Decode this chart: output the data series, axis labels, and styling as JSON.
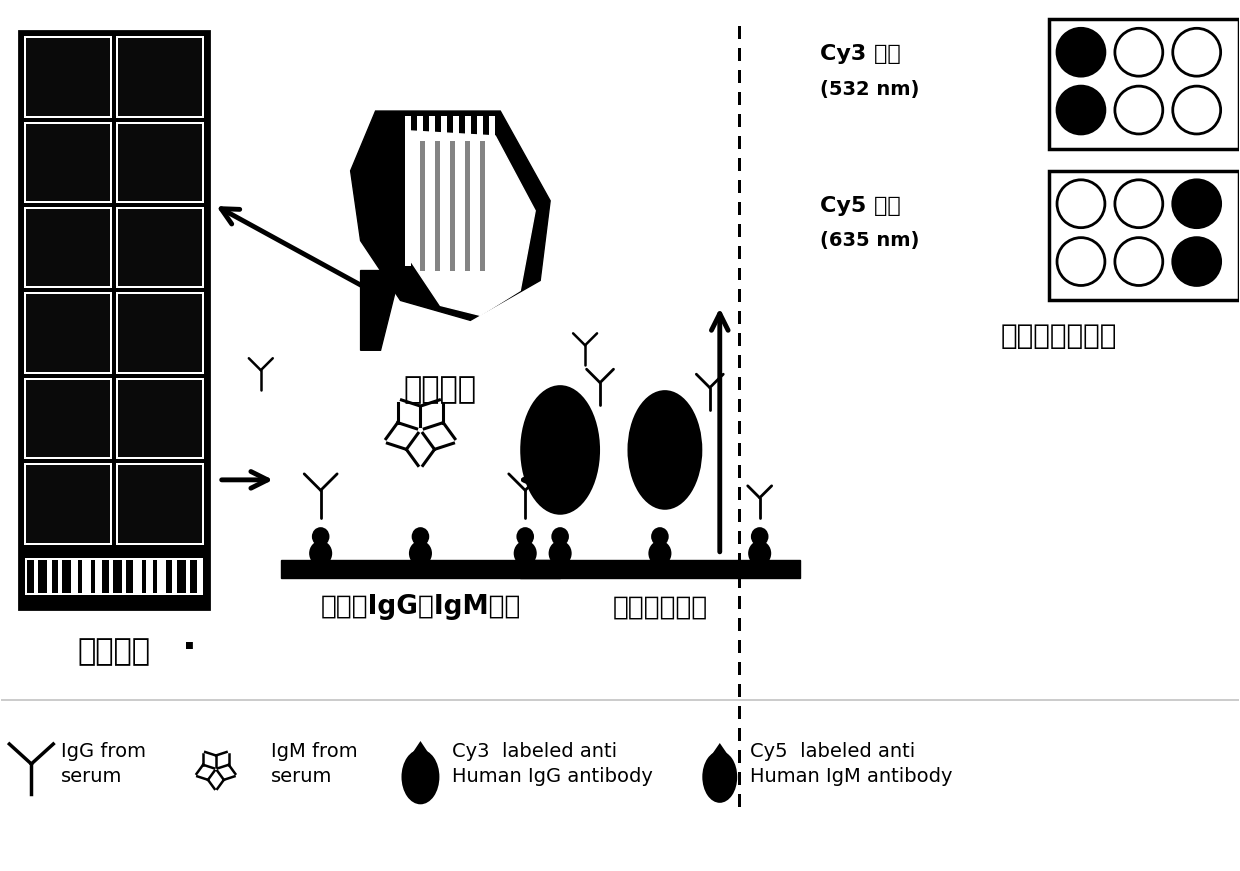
{
  "bg_color": "#ffffff",
  "black": "#000000",
  "white": "#ffffff",
  "chip_label": "定制芯片",
  "serum_label": "血清样本",
  "binding_label": "特异性IgG和IgM结合",
  "fluor_label": "荧光二抗检测",
  "scan_label": "扫描和信号读取",
  "cy3_line1": "Cy3 通道",
  "cy3_line2": "(532 nm)",
  "cy5_line1": "Cy5 通道",
  "cy5_line2": "(635 nm)",
  "legend_igg_line1": "IgG from",
  "legend_igg_line2": "serum",
  "legend_igm_line1": "IgM from",
  "legend_igm_line2": "serum",
  "legend_cy3_line1": "Cy3  labeled anti",
  "legend_cy3_line2": "Human IgG antibody",
  "legend_cy5_line1": "Cy5  labeled anti",
  "legend_cy5_line2": "Human IgM antibody",
  "dot_label": "·"
}
